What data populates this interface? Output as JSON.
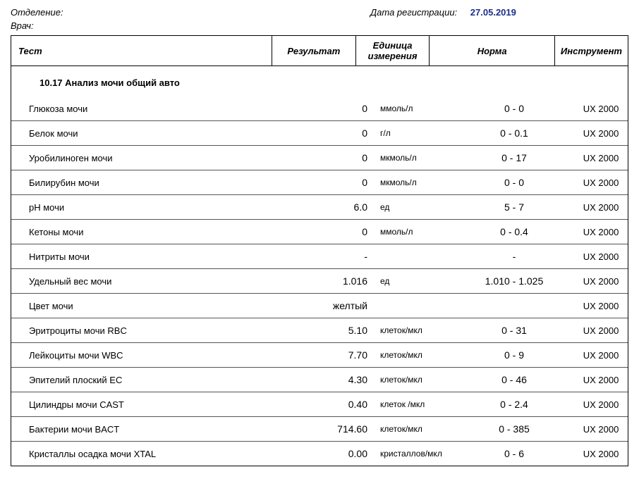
{
  "header": {
    "dept_label": "Отделение:",
    "doctor_label": "Врач:",
    "reg_label": "Дата регистрации:",
    "reg_date": "27.05.2019"
  },
  "columns": {
    "test": "Тест",
    "result": "Результат",
    "unit": "Единица измерения",
    "norm": "Норма",
    "instrument": "Инструмент"
  },
  "section_title": "10.17 Анализ мочи общий авто",
  "rows": [
    {
      "test": "Глюкоза мочи",
      "result": "0",
      "unit": "ммоль/л",
      "norm": "0 - 0",
      "instrument": "UX 2000"
    },
    {
      "test": "Белок мочи",
      "result": "0",
      "unit": "г/л",
      "norm": "0 - 0.1",
      "instrument": "UX 2000"
    },
    {
      "test": "Уробилиноген мочи",
      "result": "0",
      "unit": "мкмоль/л",
      "norm": "0 - 17",
      "instrument": "UX 2000"
    },
    {
      "test": "Билирубин мочи",
      "result": "0",
      "unit": "мкмоль/л",
      "norm": "0 - 0",
      "instrument": "UX 2000"
    },
    {
      "test": "pH мочи",
      "result": "6.0",
      "unit": "ед",
      "norm": "5 - 7",
      "instrument": "UX 2000"
    },
    {
      "test": "Кетоны мочи",
      "result": "0",
      "unit": "ммоль/л",
      "norm": "0 - 0.4",
      "instrument": "UX 2000"
    },
    {
      "test": "Нитриты мочи",
      "result": "-",
      "unit": "",
      "norm": "-",
      "instrument": "UX 2000"
    },
    {
      "test": "Удельный вес мочи",
      "result": "1.016",
      "unit": "ед",
      "norm": "1.010 - 1.025",
      "instrument": "UX 2000"
    },
    {
      "test": "Цвет мочи",
      "result": "желтый",
      "unit": "",
      "norm": "",
      "instrument": "UX 2000"
    },
    {
      "test": "Эритроциты мочи RBC",
      "result": "5.10",
      "unit": "клеток/мкл",
      "norm": "0 - 31",
      "instrument": "UX 2000"
    },
    {
      "test": "Лейкоциты мочи WBC",
      "result": "7.70",
      "unit": "клеток/мкл",
      "norm": "0 - 9",
      "instrument": "UX 2000"
    },
    {
      "test": "Эпителий плоский EC",
      "result": "4.30",
      "unit": "клеток/мкл",
      "norm": "0 - 46",
      "instrument": "UX 2000"
    },
    {
      "test": "Цилиндры мочи CAST",
      "result": "0.40",
      "unit": "клеток /мкл",
      "norm": "0 - 2.4",
      "instrument": "UX 2000"
    },
    {
      "test": "Бактерии мочи BACT",
      "result": "714.60",
      "unit": "клеток/мкл",
      "norm": "0 - 385",
      "instrument": "UX 2000"
    },
    {
      "test": "Кристаллы осадка мочи XTAL",
      "result": "0.00",
      "unit": "кристаллов/мкл",
      "norm": "0 - 6",
      "instrument": "UX 2000"
    }
  ]
}
